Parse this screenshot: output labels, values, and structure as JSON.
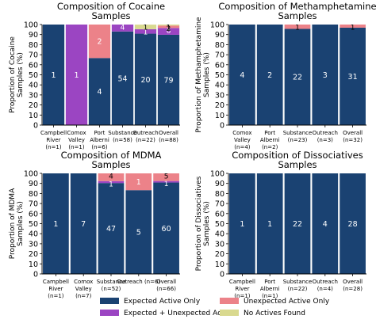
{
  "colors": {
    "expected_only": "#1a4272",
    "expected_plus_unexpected": "#9b45c2",
    "unexpected_only": "#ec8289",
    "no_actives": "#d9d98f"
  },
  "legend": {
    "expected_only": "Expected Active Only",
    "unexpected_only": "Unexpected Active Only",
    "expected_plus_unexpected": "Expected + Unexpected Actives",
    "no_actives": "No Actives Found"
  },
  "chart_data": [
    {
      "type": "bar",
      "stacked": true,
      "title": "Composition of Cocaine Samples",
      "title_lines": [
        "Composition of Cocaine",
        "Samples"
      ],
      "ylabel_lines": [
        "Proportion of Cocaine",
        "Samples (%)"
      ],
      "ylim": [
        0,
        100
      ],
      "yticks": [
        0,
        10,
        20,
        30,
        40,
        50,
        60,
        70,
        80,
        90,
        100
      ],
      "categories": [
        [
          "Campbell",
          "River",
          "(n=1)"
        ],
        [
          "Comox",
          "Valley",
          "(n=1)"
        ],
        [
          "Port",
          "Alberni",
          "(n=6)"
        ],
        [
          "Substance",
          "(n=58)"
        ],
        [
          "Outreach",
          "(n=22)"
        ],
        [
          "Overall",
          "(n=88)"
        ]
      ],
      "series": [
        {
          "name": "Expected Active Only",
          "color_key": "expected_only",
          "values": [
            100,
            0,
            66.7,
            93.1,
            90.9,
            89.8
          ],
          "counts": [
            1,
            0,
            4,
            54,
            20,
            79
          ]
        },
        {
          "name": "Expected + Unexpected Actives",
          "color_key": "expected_plus_unexpected",
          "values": [
            0,
            100,
            0,
            6.9,
            4.5,
            6.8
          ],
          "counts": [
            0,
            1,
            0,
            4,
            1,
            6
          ]
        },
        {
          "name": "Unexpected Active Only",
          "color_key": "unexpected_only",
          "values": [
            0,
            0,
            33.3,
            0,
            0,
            2.3
          ],
          "counts": [
            0,
            0,
            2,
            0,
            0,
            2
          ]
        },
        {
          "name": "No Actives Found",
          "color_key": "no_actives",
          "values": [
            0,
            0,
            0,
            0,
            4.5,
            1.1
          ],
          "counts": [
            0,
            0,
            0,
            0,
            1,
            1
          ]
        }
      ]
    },
    {
      "type": "bar",
      "stacked": true,
      "title": "Composition of Methamphetamine Samples",
      "title_lines": [
        "Composition of Methamphetamine",
        "Samples"
      ],
      "ylabel_lines": [
        "Proportion of Methamphetamine",
        "Samples (%)"
      ],
      "ylim": [
        0,
        100
      ],
      "yticks": [
        0,
        10,
        20,
        30,
        40,
        50,
        60,
        70,
        80,
        90,
        100
      ],
      "categories": [
        [
          "Comox",
          "Valley",
          "(n=4)"
        ],
        [
          "Port",
          "Alberni",
          "(n=2)"
        ],
        [
          "Substance",
          "(n=23)"
        ],
        [
          "Outreach",
          "(n=3)"
        ],
        [
          "Overall",
          "(n=32)"
        ]
      ],
      "series": [
        {
          "name": "Expected Active Only",
          "color_key": "expected_only",
          "values": [
            100,
            100,
            95.7,
            100,
            96.9
          ],
          "counts": [
            4,
            2,
            22,
            3,
            31
          ]
        },
        {
          "name": "Unexpected Active Only",
          "color_key": "unexpected_only",
          "values": [
            0,
            0,
            4.3,
            0,
            3.1
          ],
          "counts": [
            0,
            0,
            1,
            0,
            1
          ]
        }
      ]
    },
    {
      "type": "bar",
      "stacked": true,
      "title": "Composition of MDMA Samples",
      "title_lines": [
        "Composition of MDMA",
        "Samples"
      ],
      "ylabel_lines": [
        "Proportion of MDMA",
        "Samples (%)"
      ],
      "ylim": [
        0,
        100
      ],
      "yticks": [
        0,
        10,
        20,
        30,
        40,
        50,
        60,
        70,
        80,
        90,
        100
      ],
      "categories": [
        [
          "Campbell",
          "River",
          "(n=1)"
        ],
        [
          "Comox",
          "Valley",
          "(n=7)"
        ],
        [
          "Substance",
          "(n=52)"
        ],
        [
          "Outreach (n=6)"
        ],
        [
          "Overall",
          "(n=66)"
        ]
      ],
      "series": [
        {
          "name": "Expected Active Only",
          "color_key": "expected_only",
          "values": [
            100,
            100,
            90.4,
            83.3,
            90.9
          ],
          "counts": [
            1,
            7,
            47,
            5,
            60
          ]
        },
        {
          "name": "Expected + Unexpected Actives",
          "color_key": "expected_plus_unexpected",
          "values": [
            0,
            0,
            1.9,
            0,
            1.5
          ],
          "counts": [
            0,
            0,
            1,
            0,
            1
          ]
        },
        {
          "name": "Unexpected Active Only",
          "color_key": "unexpected_only",
          "values": [
            0,
            0,
            7.7,
            16.7,
            7.6
          ],
          "counts": [
            0,
            0,
            4,
            1,
            5
          ]
        }
      ]
    },
    {
      "type": "bar",
      "stacked": true,
      "title": "Composition of Dissociatives Samples",
      "title_lines": [
        "Composition of Dissociatives",
        "Samples"
      ],
      "ylabel_lines": [
        "Proportion of Dissociatives",
        "Samples (%)"
      ],
      "ylim": [
        0,
        100
      ],
      "yticks": [
        0,
        10,
        20,
        30,
        40,
        50,
        60,
        70,
        80,
        90,
        100
      ],
      "categories": [
        [
          "Campbell",
          "River",
          "(n=1)"
        ],
        [
          "Port",
          "Alberni",
          "(n=1)"
        ],
        [
          "Substance",
          "(n=22)"
        ],
        [
          "Outreach",
          "(n=4)"
        ],
        [
          "Overall",
          "(n=28)"
        ]
      ],
      "series": [
        {
          "name": "Expected Active Only",
          "color_key": "expected_only",
          "values": [
            100,
            100,
            100,
            100,
            100
          ],
          "counts": [
            1,
            1,
            22,
            4,
            28
          ]
        }
      ]
    }
  ]
}
